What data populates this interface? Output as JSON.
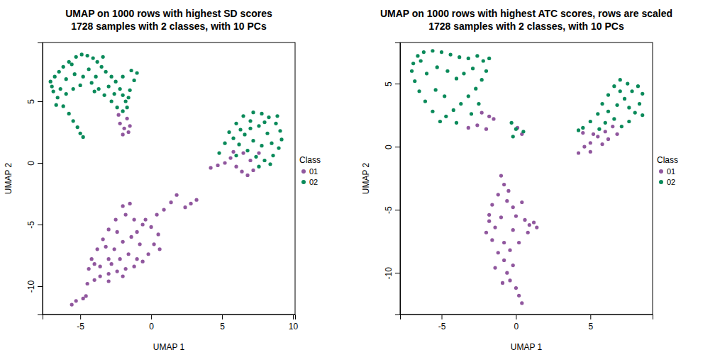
{
  "chart_data": [
    {
      "type": "scatter",
      "title": "UMAP on 1000 rows with highest SD scores",
      "subtitle": "1728 samples with 2 classes, with 10 PCs",
      "xlabel": "UMAP 1",
      "ylabel": "UMAP 2",
      "legend_title": "Class",
      "legend": "right",
      "marker": "circle",
      "xlim": [
        -7.66,
        10.15
      ],
      "ylim": [
        -12.3,
        9.77
      ],
      "xticks": [
        -5,
        0,
        5,
        10
      ],
      "yticks": [
        -10,
        -5,
        0,
        5
      ],
      "series": [
        {
          "name": "01",
          "color": "#90579e",
          "x": [
            -2.2,
            -1.9,
            -1.6,
            -2.0,
            -1.7,
            -2.3,
            -1.5,
            4.2,
            4.7,
            5.2,
            5.6,
            6.0,
            6.4,
            6.8,
            7.2,
            7.0,
            6.5,
            5.8,
            7.6,
            -5.6,
            -5.3,
            -4.8,
            -4.6,
            -4.5,
            -4.0,
            -3.6,
            -3.0,
            -2.4,
            -1.8,
            -1.2,
            -0.6,
            -0.2,
            0.2,
            0.5,
            0.0,
            -0.6,
            -1.2,
            -1.8,
            -2.0,
            -1.5,
            -2.5,
            -3.0,
            -3.4,
            -3.8,
            -4.2,
            -4.4,
            -3.6,
            -3.0,
            -2.6,
            -2.0,
            -1.4,
            -0.8,
            -1.6,
            -2.2,
            -2.8,
            -0.4,
            0.4,
            0.9,
            1.4,
            1.8,
            2.4,
            2.8,
            3.2,
            -1.0,
            -2.4,
            -3.2,
            -1.0,
            -2.0,
            -3.0,
            0.6,
            -4.0
          ],
          "values": [
            3.2,
            2.8,
            2.5,
            2.3,
            3.6,
            3.9,
            3.0,
            -0.4,
            -0.2,
            0.0,
            0.4,
            -0.3,
            -0.7,
            -1.0,
            -0.6,
            0.2,
            0.8,
            0.9,
            0.8,
            -11.5,
            -11.2,
            -11.0,
            -10.8,
            -9.8,
            -9.5,
            -9.2,
            -9.0,
            -8.8,
            -8.6,
            -8.4,
            -8.0,
            -7.4,
            -6.6,
            -5.8,
            -5.2,
            -5.0,
            -4.6,
            -4.2,
            -3.5,
            -3.3,
            -4.6,
            -5.4,
            -6.2,
            -7.0,
            -7.8,
            -8.6,
            -8.4,
            -7.8,
            -7.0,
            -6.4,
            -6.0,
            -6.6,
            -7.4,
            -7.8,
            -8.2,
            -4.6,
            -4.2,
            -3.8,
            -3.2,
            -2.6,
            -3.6,
            -3.3,
            -3.0,
            -5.6,
            -5.6,
            -6.8,
            -7.8,
            -9.2,
            -9.6,
            -7.0,
            -8.2
          ]
        },
        {
          "name": "02",
          "color": "#0a8a5a",
          "x": [
            -7.0,
            -6.9,
            -7.1,
            -6.8,
            -6.5,
            -6.2,
            -5.8,
            -5.3,
            -4.9,
            -4.5,
            -4.1,
            -3.8,
            -3.5,
            -3.2,
            -2.8,
            -2.5,
            -2.2,
            -2.0,
            -1.8,
            -1.7,
            -2.0,
            -2.4,
            -2.8,
            -3.3,
            -3.7,
            -4.2,
            -4.8,
            -5.4,
            -6.0,
            -6.4,
            -6.6,
            -6.2,
            -5.8,
            -5.5,
            -5.2,
            -5.0,
            -4.8,
            -6.0,
            -5.5,
            -5.0,
            -4.4,
            -3.9,
            -3.0,
            -2.6,
            -1.6,
            -1.5,
            -1.2,
            -1.0,
            -1.4,
            -2.0,
            -6.7,
            -3.4,
            -5.6,
            -4.0,
            5.5,
            6.0,
            6.5,
            7.2,
            7.8,
            8.3,
            8.8,
            9.1,
            9.2,
            9.0,
            8.6,
            8.0,
            7.4,
            6.8,
            6.2,
            5.8,
            7.0,
            7.6,
            8.2,
            8.5,
            7.8,
            7.2,
            6.6,
            8.9,
            8.0,
            7.0,
            6.3,
            5.2,
            4.8,
            6.0,
            7.6,
            8.4
          ],
          "values": [
            6.2,
            5.8,
            6.6,
            7.0,
            7.4,
            7.8,
            8.2,
            8.6,
            8.8,
            8.7,
            8.5,
            8.2,
            7.8,
            7.4,
            7.0,
            6.6,
            6.0,
            5.5,
            5.0,
            4.5,
            4.2,
            4.5,
            5.0,
            5.5,
            6.0,
            6.5,
            7.0,
            7.2,
            6.8,
            6.0,
            5.3,
            4.6,
            4.0,
            3.4,
            2.9,
            2.4,
            2.1,
            5.6,
            6.0,
            6.3,
            7.6,
            7.0,
            6.2,
            5.6,
            5.3,
            5.9,
            6.7,
            7.3,
            7.5,
            7.0,
            4.7,
            8.6,
            8.0,
            5.8,
            2.5,
            3.2,
            3.8,
            4.1,
            4.0,
            3.7,
            3.2,
            2.6,
            1.9,
            1.2,
            0.6,
            0.2,
            0.5,
            1.0,
            1.5,
            2.0,
            2.8,
            3.0,
            2.4,
            1.6,
            1.4,
            1.8,
            2.3,
            3.8,
            3.3,
            3.4,
            2.7,
            1.6,
            0.8,
            0.6,
            -0.3,
            -0.1
          ]
        }
      ]
    },
    {
      "type": "scatter",
      "title": "UMAP on 1000 rows with highest ATC scores, rows are scaled",
      "subtitle": "1728 samples with 2 classes, with 10 PCs",
      "xlabel": "UMAP 1",
      "ylabel": "UMAP 2",
      "legend_title": "Class",
      "legend": "right",
      "marker": "circle",
      "xlim": [
        -7.79,
        9.18
      ],
      "ylim": [
        -13.3,
        8.26
      ],
      "xticks": [
        -5,
        0,
        5
      ],
      "yticks": [
        -10,
        -5,
        0,
        5
      ],
      "series": [
        {
          "name": "01",
          "color": "#90579e",
          "x": [
            -2.3,
            -1.8,
            -1.5,
            -2.6,
            -2.0,
            -3.2,
            0.1,
            0.4,
            4.2,
            4.6,
            5.0,
            5.5,
            6.0,
            6.5,
            5.2,
            4.5,
            6.8,
            5.8,
            5.0,
            6.2,
            -1.0,
            -0.8,
            -1.2,
            -0.6,
            -1.6,
            -0.2,
            -1.8,
            -1.0,
            0.0,
            0.6,
            1.2,
            1.4,
            0.8,
            -0.2,
            -1.4,
            -2.0,
            -1.6,
            -0.8,
            0.2,
            -0.4,
            -1.2,
            -0.8,
            -0.2,
            -0.6,
            -0.4,
            0.0,
            0.2,
            0.4,
            -1.8,
            0.4,
            -0.5,
            -1.4,
            -0.9,
            0.9
          ],
          "values": [
            2.7,
            2.4,
            2.2,
            1.7,
            1.4,
            1.5,
            1.5,
            1.0,
            -0.5,
            0.0,
            0.3,
            0.8,
            1.2,
            1.6,
            1.0,
            1.1,
            1.0,
            0.2,
            -0.4,
            0.6,
            -2.3,
            -3.0,
            -3.8,
            -4.3,
            -4.6,
            -4.8,
            -5.4,
            -5.6,
            -5.5,
            -5.8,
            -6.0,
            -6.4,
            -6.8,
            -6.6,
            -6.4,
            -6.8,
            -7.4,
            -7.6,
            -7.6,
            -8.2,
            -8.4,
            -9.0,
            -9.4,
            -10.0,
            -10.6,
            -11.2,
            -11.8,
            -12.4,
            -5.9,
            -4.4,
            -3.5,
            -9.6,
            -10.8,
            -6.2
          ]
        },
        {
          "name": "02",
          "color": "#0a8a5a",
          "x": [
            -7.0,
            -6.9,
            -6.6,
            -6.2,
            -5.6,
            -5.0,
            -4.4,
            -3.8,
            -3.2,
            -2.6,
            -2.2,
            -2.0,
            -2.3,
            -2.7,
            -3.2,
            -3.7,
            -4.2,
            -4.7,
            -5.1,
            -5.6,
            -6.1,
            -6.5,
            -6.8,
            -6.0,
            -5.3,
            -4.6,
            -4.0,
            -3.5,
            -2.9,
            -5.4,
            -4.8,
            -2.5,
            -3.0,
            -4.0,
            -6.4,
            -1.8,
            -0.3,
            0.0,
            0.5,
            -0.2,
            4.5,
            5.0,
            5.5,
            5.8,
            6.2,
            6.6,
            7.0,
            7.5,
            7.8,
            8.2,
            8.5,
            8.3,
            8.0,
            7.6,
            7.1,
            6.6,
            6.2,
            6.8,
            7.3,
            7.6,
            5.6,
            6.0,
            7.0,
            8.5,
            4.2
          ],
          "values": [
            6.0,
            6.6,
            7.2,
            7.5,
            7.6,
            7.5,
            7.3,
            7.1,
            7.0,
            7.2,
            6.8,
            6.0,
            5.3,
            4.6,
            4.0,
            3.4,
            2.9,
            2.4,
            2.0,
            2.8,
            3.6,
            4.4,
            5.2,
            5.8,
            6.3,
            6.0,
            5.4,
            5.8,
            6.2,
            4.5,
            4.0,
            3.4,
            2.6,
            1.9,
            6.8,
            7.0,
            1.9,
            1.4,
            1.2,
            0.8,
            1.5,
            2.0,
            2.6,
            3.4,
            4.1,
            4.8,
            5.3,
            5.0,
            4.4,
            4.8,
            4.2,
            3.4,
            2.7,
            2.0,
            1.6,
            2.2,
            2.8,
            3.3,
            3.8,
            3.1,
            1.4,
            1.9,
            4.4,
            2.5,
            1.3
          ]
        }
      ]
    }
  ]
}
